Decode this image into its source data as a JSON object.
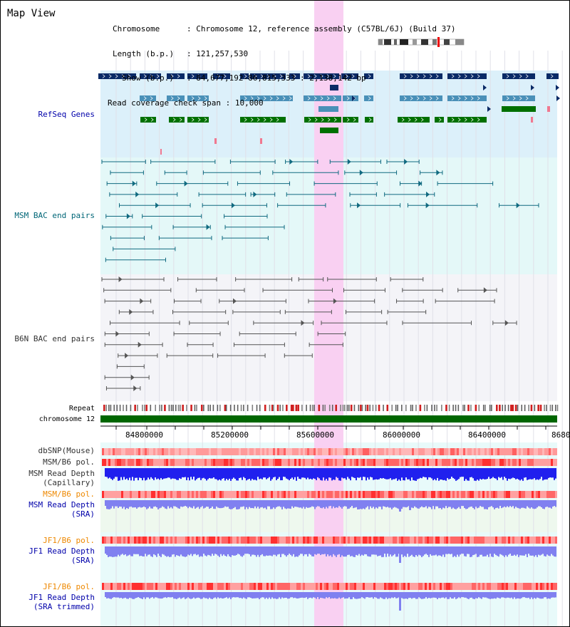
{
  "page_title": "Map View",
  "header": {
    "chromosome_label": "Chromosome",
    "chromosome_value": "Chromosome 12, reference assembly (C57BL/6J) (Build 37)",
    "length_label": "Length (b.p.)",
    "length_value": "121,257,530",
    "show_label": "Show (b.p.)",
    "show_value": "84,677,192-86,815,333 : 2,138,142 bp",
    "coverage_label": "Read coverage check span",
    "coverage_value": "10,000"
  },
  "tracks": {
    "refseq": {
      "label": "RefSeq Genes",
      "color": "#0000aa"
    },
    "msm_bac": {
      "label": "MSM BAC end pairs",
      "color": "#006677"
    },
    "b6n_bac": {
      "label": "B6N BAC end pairs",
      "color": "#444444"
    },
    "repeat": {
      "label": "Repeat"
    },
    "chromosome": {
      "label": "chromosome 12"
    },
    "dbsnp": {
      "label": "dbSNP(Mouse)"
    },
    "msm_b6_pol": {
      "label": "MSM/B6 pol."
    },
    "msm_depth_cap": {
      "label1": "MSM Read Depth",
      "label2": "(Capillary)"
    },
    "msm_b6_pol2": {
      "label": "MSM/B6 pol.",
      "color": "#ee8800"
    },
    "msm_depth_sra": {
      "label1": "MSM Read Depth",
      "label2": "(SRA)",
      "color": "#0000aa"
    },
    "jf1_b6_pol": {
      "label": "JF1/B6 pol.",
      "color": "#ee8800"
    },
    "jf1_depth_sra": {
      "label1": "JF1 Read Depth",
      "label2": "(SRA)",
      "color": "#0000aa"
    },
    "jf1_b6_pol2": {
      "label": "JF1/B6 pol.",
      "color": "#ee8800"
    },
    "jf1_depth_trim": {
      "label1": "JF1 Read Depth",
      "label2": "(SRA trimmed)",
      "color": "#0000aa"
    }
  },
  "axis": {
    "ticks": [
      "84800000",
      "85200000",
      "85600000",
      "86000000",
      "86400000",
      "8680"
    ]
  },
  "colors": {
    "highlight": "#f9d0f2",
    "refseq_bg": "#dcf0fa",
    "msm_bg": "#e4f8f8",
    "b6n_bg": "#f4f4f8",
    "chromosome_bar": "#006600",
    "gene_navy": "#0a2a66",
    "gene_teal": "#4a90b8",
    "gene_green": "#007000",
    "depth_blue": "#2020ee",
    "depth_lavender": "#8080f0"
  }
}
